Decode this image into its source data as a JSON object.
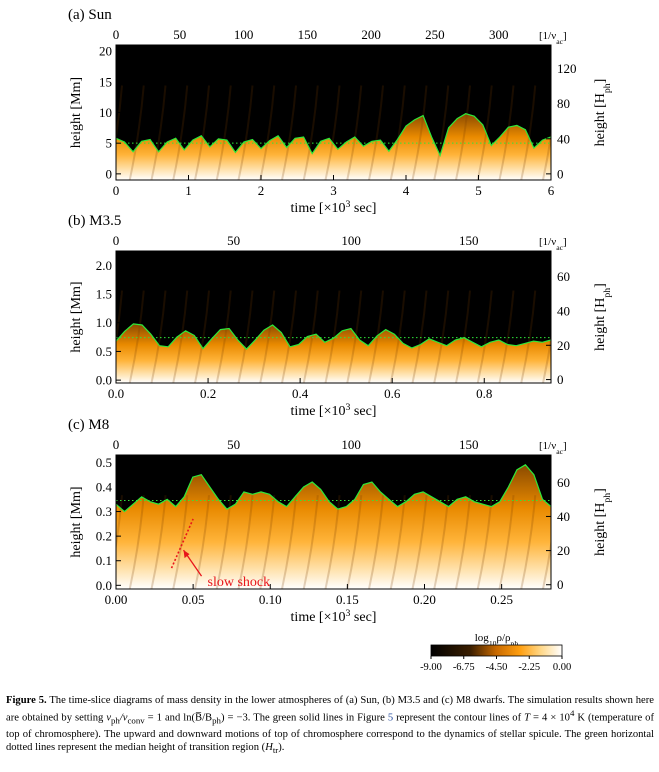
{
  "panels": [
    {
      "id": "sun",
      "label": "(a)  Sun",
      "top_axis_unit": "[1/ν",
      "top_axis_unit_sub": "ac",
      "top_ticks": [
        "0",
        "50",
        "100",
        "150",
        "200",
        "250",
        "300"
      ],
      "top_tick_values": [
        0,
        50,
        100,
        150,
        200,
        250,
        300
      ],
      "top_range": [
        0,
        341
      ],
      "bottom_ticks": [
        "0",
        "1",
        "2",
        "3",
        "4",
        "5",
        "6"
      ],
      "bottom_tick_values": [
        0,
        1,
        2,
        3,
        4,
        5,
        6
      ],
      "bottom_range": [
        0,
        6
      ],
      "xlabel": "time [×10",
      "xlabel_sup": "3",
      "xlabel_end": " sec]",
      "ylabel": "height [Mm]",
      "left_ticks": [
        "0",
        "5",
        "10",
        "15",
        "20"
      ],
      "left_tick_values": [
        0,
        5,
        10,
        15,
        20
      ],
      "left_range": [
        -1,
        21
      ],
      "right_ylabel": "height [H",
      "right_ylabel_sub": "ph",
      "right_ticks": [
        "0",
        "40",
        "80",
        "120"
      ],
      "right_tick_values": [
        0,
        40,
        80,
        120
      ],
      "right_range": [
        -7,
        147
      ],
      "median_height": 5.0,
      "tr_height": [
        5.8,
        5.2,
        3.6,
        5.3,
        5.6,
        3.6,
        5.2,
        5.8,
        3.9,
        5.5,
        6.2,
        4.4,
        5.7,
        5.5,
        3.5,
        5.2,
        5.6,
        4.1,
        5.4,
        6.2,
        4.3,
        5.8,
        6.0,
        3.3,
        5.3,
        5.8,
        4.0,
        5.2,
        6.0,
        4.5,
        5.3,
        5.5,
        3.7,
        5.6,
        7.8,
        8.8,
        9.5,
        6.0,
        3.0,
        7.5,
        9.0,
        9.8,
        9.4,
        8.0,
        4.6,
        6.0,
        7.6,
        7.9,
        7.2,
        4.2,
        5.5,
        6.0
      ]
    },
    {
      "id": "m35",
      "label": "(b)  M3.5",
      "top_axis_unit": "[1/ν",
      "top_axis_unit_sub": "ac",
      "top_ticks": [
        "0",
        "50",
        "100",
        "150"
      ],
      "top_tick_values": [
        0,
        50,
        100,
        150
      ],
      "top_range": [
        0,
        185
      ],
      "bottom_ticks": [
        "0.0",
        "0.2",
        "0.4",
        "0.6",
        "0.8"
      ],
      "bottom_tick_values": [
        0,
        0.2,
        0.4,
        0.6,
        0.8
      ],
      "bottom_range": [
        0,
        0.945
      ],
      "xlabel": "time [×10",
      "xlabel_sup": "3",
      "xlabel_end": " sec]",
      "ylabel": "height [Mm]",
      "left_ticks": [
        "0.0",
        "0.5",
        "1.0",
        "1.5",
        "2.0"
      ],
      "left_tick_values": [
        0,
        0.5,
        1.0,
        1.5,
        2.0
      ],
      "left_range": [
        -0.05,
        2.25
      ],
      "right_ylabel": "height [H",
      "right_ylabel_sub": "ph",
      "right_ticks": [
        "0",
        "20",
        "40",
        "60"
      ],
      "right_tick_values": [
        0,
        20,
        40,
        60
      ],
      "right_range": [
        -2,
        75
      ],
      "median_height": 0.74,
      "tr_height": [
        0.68,
        0.85,
        0.98,
        0.96,
        0.8,
        0.6,
        0.58,
        0.75,
        0.86,
        0.78,
        0.55,
        0.72,
        0.88,
        0.9,
        0.7,
        0.54,
        0.7,
        0.87,
        0.96,
        0.83,
        0.58,
        0.62,
        0.76,
        0.8,
        0.66,
        0.73,
        0.86,
        0.9,
        0.7,
        0.6,
        0.77,
        0.88,
        0.8,
        0.64,
        0.56,
        0.62,
        0.72,
        0.66,
        0.6,
        0.7,
        0.74,
        0.66,
        0.58,
        0.66,
        0.7,
        0.62,
        0.6,
        0.64,
        0.68,
        0.66,
        0.7
      ]
    },
    {
      "id": "m8",
      "label": "(c)  M8",
      "top_axis_unit": "[1/ν",
      "top_axis_unit_sub": "ac",
      "top_ticks": [
        "0",
        "50",
        "100",
        "150"
      ],
      "top_tick_values": [
        0,
        50,
        100,
        150
      ],
      "top_range": [
        0,
        185
      ],
      "bottom_ticks": [
        "0.00",
        "0.05",
        "0.10",
        "0.15",
        "0.20",
        "0.25"
      ],
      "bottom_tick_values": [
        0,
        0.05,
        0.1,
        0.15,
        0.2,
        0.25
      ],
      "bottom_range": [
        0,
        0.282
      ],
      "xlabel": "time [×10",
      "xlabel_sup": "3",
      "xlabel_end": " sec]",
      "ylabel": "height [Mm]",
      "left_ticks": [
        "0.0",
        "0.1",
        "0.2",
        "0.3",
        "0.4",
        "0.5"
      ],
      "left_tick_values": [
        0,
        0.1,
        0.2,
        0.3,
        0.4,
        0.5
      ],
      "left_range": [
        -0.015,
        0.53
      ],
      "right_ylabel": "height [H",
      "right_ylabel_sub": "ph",
      "right_ticks": [
        "0",
        "20",
        "40",
        "60"
      ],
      "right_tick_values": [
        0,
        20,
        40,
        60
      ],
      "right_range": [
        -2.5,
        76
      ],
      "median_height": 0.345,
      "tr_height": [
        0.33,
        0.3,
        0.33,
        0.36,
        0.34,
        0.33,
        0.35,
        0.32,
        0.36,
        0.44,
        0.45,
        0.4,
        0.35,
        0.31,
        0.33,
        0.38,
        0.37,
        0.38,
        0.37,
        0.34,
        0.32,
        0.36,
        0.4,
        0.42,
        0.39,
        0.34,
        0.31,
        0.32,
        0.35,
        0.41,
        0.42,
        0.38,
        0.35,
        0.32,
        0.34,
        0.37,
        0.38,
        0.36,
        0.34,
        0.32,
        0.35,
        0.36,
        0.34,
        0.33,
        0.32,
        0.34,
        0.4,
        0.47,
        0.49,
        0.45,
        0.35,
        0.32
      ],
      "annotation": "slow shock",
      "shock_start": [
        0.036,
        0.07
      ],
      "shock_end": [
        0.05,
        0.27
      ]
    }
  ],
  "colorbar": {
    "title": "log",
    "title_sub": "10",
    "title_end": "ρ/ρ",
    "title_sub2": "ph",
    "ticks": [
      "-9.00",
      "-6.75",
      "-4.50",
      "-2.25",
      "0.00"
    ],
    "tick_values": [
      -9.0,
      -6.75,
      -4.5,
      -2.25,
      0.0
    ],
    "range": [
      -9,
      0
    ]
  },
  "colors": {
    "contour": "#2ee83a",
    "median": "#2ee83a",
    "annotation": "#e8151b",
    "ref_link": "#2a4fa0"
  },
  "caption": {
    "label": "Figure 5.",
    "part1": " The time-slice diagrams of mass density in the lower atmospheres of (a) Sun, (b) M3.5 and (c) M8 dwarfs. The simulation results shown here are obtained by setting ",
    "cond1": "v",
    "cond1_sub": "ph",
    "cond1_mid": "/v",
    "cond1_sub2": "conv",
    "cond1_end": " = 1 and ln(B̅/B",
    "cond2_sub": "ph",
    "cond2_end": ") = −3. The green solid lines in Figure ",
    "fig_ref": "5",
    "part2": " represent the contour lines of ",
    "temp": "T",
    "temp_val": " = 4 × 10",
    "temp_sup": "4",
    "part3": " K (temperature of top of chromosphere). The upward and downward motions of top of chromosphere correspond to the dynamics of stellar spicule. The green horizontal dotted lines represent the median height of transition region (",
    "htr": "H",
    "htr_sub": "tr",
    "part4": ")."
  }
}
